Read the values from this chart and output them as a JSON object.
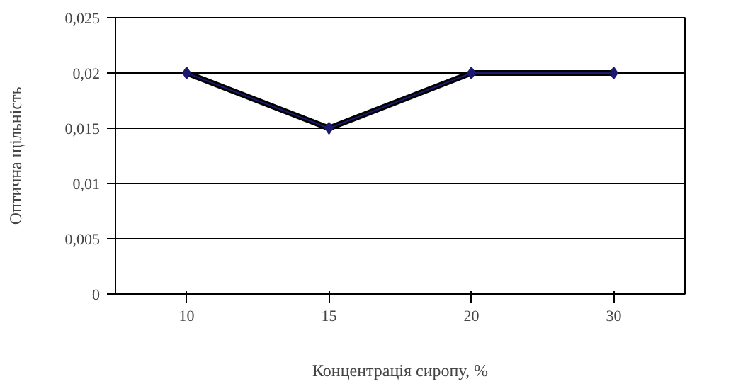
{
  "chart_data": {
    "type": "line",
    "xlabel": "Концентрація сиропу, %",
    "ylabel": "Оптична щільність",
    "categories": [
      "10",
      "15",
      "20",
      "30"
    ],
    "ylim": [
      0,
      0.025
    ],
    "yticks": [
      {
        "value": 0,
        "label": "0"
      },
      {
        "value": 0.005,
        "label": "0,005"
      },
      {
        "value": 0.01,
        "label": "0,01"
      },
      {
        "value": 0.015,
        "label": "0,015"
      },
      {
        "value": 0.02,
        "label": "0,02"
      },
      {
        "value": 0.025,
        "label": "0,025"
      }
    ],
    "grid": "y",
    "line_style": "solid",
    "series": [
      {
        "color": "#1a1a6e",
        "marker": "diamond",
        "values": [
          0.02,
          0.015,
          0.02,
          0.02
        ]
      },
      {
        "color": "#000000",
        "marker": "none",
        "values": [
          0.02,
          0.015,
          0.02,
          0.02
        ]
      }
    ]
  }
}
